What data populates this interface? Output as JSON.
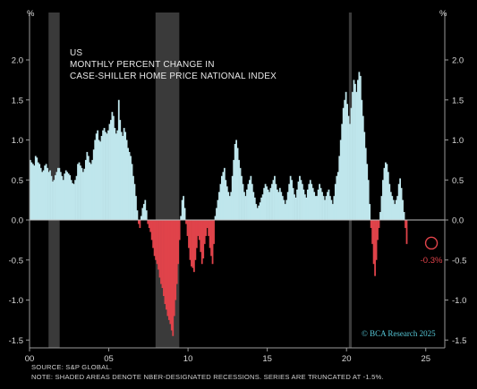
{
  "chart_data": {
    "type": "bar",
    "title_lines": [
      "US",
      "MONTHLY PERCENT CHANGE IN",
      "CASE-SHILLER HOME PRICE NATIONAL INDEX"
    ],
    "y_unit_left": "%",
    "y_unit_right": "%",
    "ylim": [
      -1.5,
      2.2
    ],
    "yticks": [
      -1.5,
      -1.0,
      -0.5,
      0.0,
      0.5,
      1.0,
      1.5,
      2.0
    ],
    "ytick_labels": [
      "-1.5",
      "-1.0",
      "-0.5",
      "0.0",
      "0.5",
      "1.0",
      "1.5",
      "2.0"
    ],
    "xlim": [
      2000.0,
      2026.2
    ],
    "xticks": [
      2000,
      2005,
      2010,
      2015,
      2020,
      2025
    ],
    "xtick_labels": [
      "00",
      "05",
      "10",
      "15",
      "20",
      "25"
    ],
    "recessions": [
      [
        2001.2,
        2001.9
      ],
      [
        2007.95,
        2009.45
      ],
      [
        2020.15,
        2020.33
      ]
    ],
    "series": {
      "start_year": 2000.0,
      "months_per_year": 12,
      "values": [
        0.75,
        0.72,
        0.7,
        0.68,
        0.8,
        0.78,
        0.72,
        0.7,
        0.65,
        0.6,
        0.62,
        0.68,
        0.7,
        0.65,
        0.6,
        0.62,
        0.55,
        0.48,
        0.5,
        0.56,
        0.6,
        0.65,
        0.65,
        0.6,
        0.55,
        0.5,
        0.58,
        0.62,
        0.6,
        0.58,
        0.56,
        0.5,
        0.46,
        0.45,
        0.5,
        0.55,
        0.7,
        0.72,
        0.68,
        0.65,
        0.6,
        0.64,
        0.75,
        0.85,
        0.8,
        0.72,
        0.7,
        0.75,
        0.88,
        1.0,
        1.08,
        1.12,
        1.0,
        0.98,
        1.05,
        1.12,
        1.15,
        1.1,
        1.08,
        1.12,
        1.2,
        1.25,
        1.35,
        1.3,
        1.15,
        1.08,
        1.12,
        1.5,
        1.25,
        1.1,
        1.05,
        1.15,
        1.1,
        1.0,
        0.9,
        0.85,
        0.8,
        0.7,
        0.55,
        0.45,
        0.3,
        0.12,
        -0.05,
        -0.1,
        0.05,
        0.15,
        0.2,
        0.25,
        0.12,
        -0.05,
        -0.1,
        -0.15,
        -0.25,
        -0.35,
        -0.45,
        -0.5,
        -0.55,
        -0.62,
        -0.72,
        -0.8,
        -0.85,
        -0.95,
        -1.05,
        -1.12,
        -1.2,
        -1.25,
        -1.3,
        -1.38,
        -1.45,
        -1.2,
        -1.0,
        -0.8,
        -0.55,
        -0.25,
        0.05,
        0.25,
        0.3,
        0.15,
        -0.05,
        -0.2,
        -0.35,
        -0.5,
        -0.58,
        -0.6,
        -0.65,
        -0.5,
        -0.35,
        -0.2,
        -0.25,
        -0.4,
        -0.55,
        -0.48,
        -0.3,
        -0.2,
        -0.1,
        -0.2,
        -0.35,
        -0.45,
        -0.55,
        -0.3,
        0.05,
        0.15,
        0.25,
        0.35,
        0.45,
        0.55,
        0.6,
        0.65,
        0.5,
        0.42,
        0.35,
        0.3,
        0.35,
        0.55,
        0.75,
        0.95,
        1.0,
        0.9,
        0.75,
        0.65,
        0.55,
        0.45,
        0.35,
        0.3,
        0.38,
        0.45,
        0.5,
        0.55,
        0.45,
        0.35,
        0.28,
        0.2,
        0.15,
        0.18,
        0.22,
        0.28,
        0.32,
        0.4,
        0.45,
        0.42,
        0.38,
        0.35,
        0.4,
        0.45,
        0.5,
        0.55,
        0.45,
        0.38,
        0.35,
        0.4,
        0.35,
        0.3,
        0.25,
        0.2,
        0.25,
        0.35,
        0.45,
        0.55,
        0.5,
        0.4,
        0.32,
        0.28,
        0.38,
        0.48,
        0.55,
        0.5,
        0.45,
        0.38,
        0.32,
        0.28,
        0.38,
        0.45,
        0.5,
        0.45,
        0.4,
        0.35,
        0.3,
        0.3,
        0.38,
        0.45,
        0.4,
        0.35,
        0.3,
        0.25,
        0.3,
        0.35,
        0.38,
        0.3,
        0.25,
        0.2,
        0.3,
        0.45,
        0.55,
        0.6,
        0.8,
        1.0,
        1.2,
        1.4,
        1.5,
        1.6,
        1.45,
        1.3,
        1.2,
        1.4,
        1.6,
        1.75,
        1.7,
        1.6,
        1.75,
        1.85,
        1.8,
        1.5,
        1.3,
        1.1,
        0.9,
        0.7,
        0.5,
        0.2,
        -0.1,
        -0.3,
        -0.55,
        -0.7,
        -0.5,
        -0.25,
        -0.1,
        0.1,
        0.3,
        0.5,
        0.65,
        0.72,
        0.7,
        0.6,
        0.45,
        0.35,
        0.3,
        0.25,
        0.2,
        0.25,
        0.3,
        0.45,
        0.52,
        0.4,
        0.25,
        0.1,
        -0.1,
        -0.3
      ]
    },
    "annotation": {
      "label": "-0.3%",
      "year": 2025.3,
      "value": -0.3
    },
    "watermark": "© BCA Research 2025",
    "source": "SOURCE: S&P GLOBAL.",
    "note": "NOTE: SHADED AREAS DENOTE NBER-DESIGNATED RECESSIONS. SERIES ARE TRUNCATED AT -1.5%.",
    "colors": {
      "positive": "#bfe6ec",
      "negative": "#e0434a",
      "recession": "#3a3a3a",
      "background": "#000000",
      "zero_line": "#bfbfbf",
      "axis": "#9a9a9a",
      "annotation": "#e0434a",
      "watermark": "#55c5d5"
    }
  }
}
